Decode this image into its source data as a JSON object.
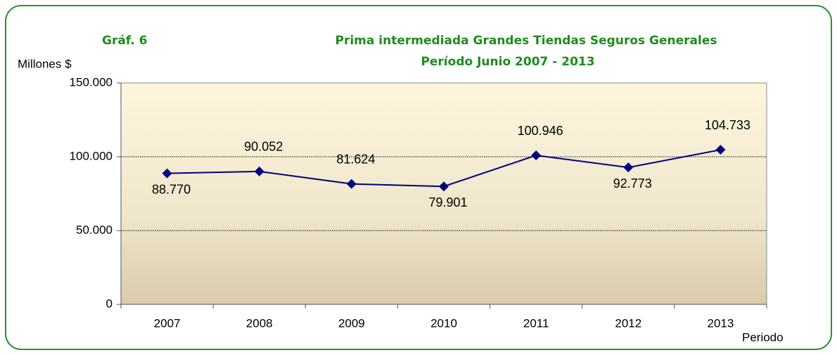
{
  "chart_data": {
    "type": "line",
    "label": "Gráf. 6",
    "title": "Prima intermediada  Grandes Tiendas  Seguros Generales",
    "subtitle": "Período Junio 2007 - 2013",
    "y_label": "Millones $",
    "x_label": "Periodo",
    "categories": [
      "2007",
      "2008",
      "2009",
      "2010",
      "2011",
      "2012",
      "2013"
    ],
    "series": [
      {
        "name": "Prima intermediada",
        "color": "#000080",
        "values": [
          88770,
          90052,
          81624,
          79901,
          100946,
          92773,
          104733
        ],
        "value_labels": [
          "88.770",
          "90.052",
          "81.624",
          "79.901",
          "100.946",
          "92.773",
          "104.733"
        ]
      }
    ],
    "ylim": [
      0,
      150000
    ],
    "yticks": [
      0,
      {
        "value": 50000,
        "label": "50.000"
      },
      {
        "value": 100000,
        "label": "100.000"
      },
      {
        "value": 150000,
        "label": "150.000"
      }
    ],
    "grid": true
  }
}
